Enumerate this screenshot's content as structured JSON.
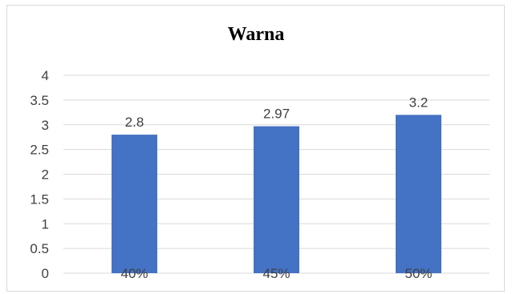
{
  "chart_data": {
    "type": "bar",
    "title": "Warna",
    "categories": [
      "40%",
      "45%",
      "50%"
    ],
    "series": [
      {
        "values": [
          2.8,
          2.97,
          3.2
        ],
        "color": "#4472c4"
      }
    ],
    "data_labels": [
      "2.8",
      "2.97",
      "3.2"
    ],
    "y_ticks": [
      "0",
      "0.5",
      "1",
      "1.5",
      "2",
      "2.5",
      "3",
      "3.5",
      "4"
    ],
    "ylim": [
      0,
      4
    ],
    "ytick_step": 0.5,
    "grid": true,
    "gridline_color": "#d9d9d9",
    "legend": "none",
    "xlabel": "",
    "ylabel": ""
  }
}
